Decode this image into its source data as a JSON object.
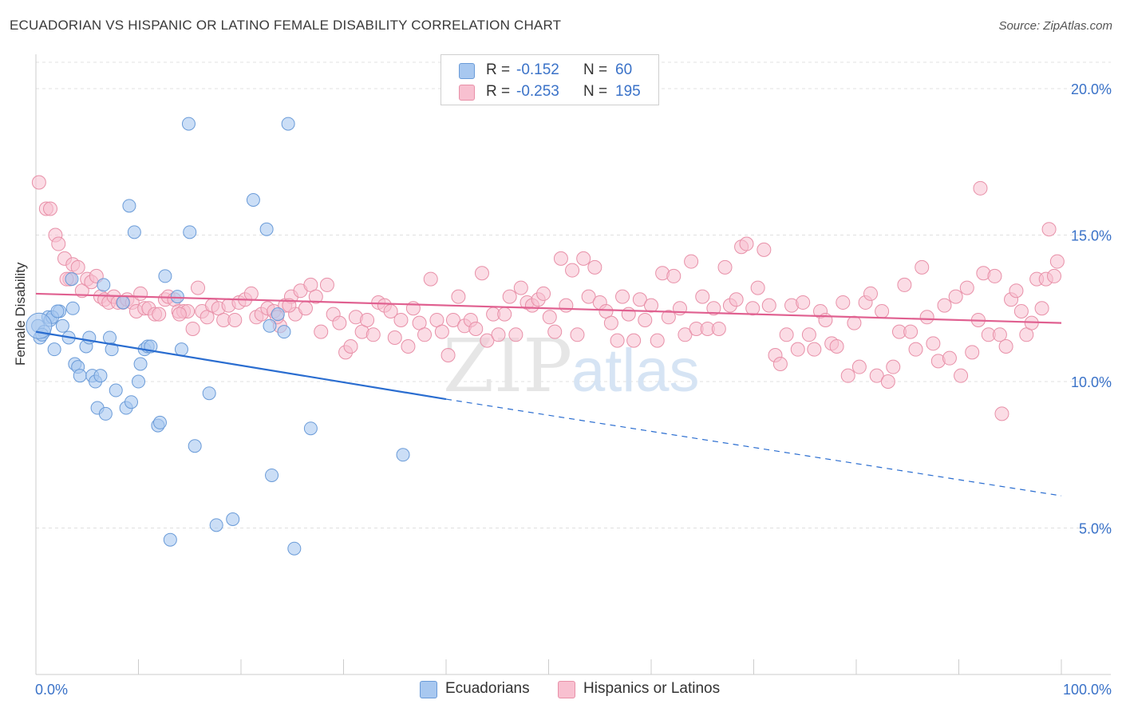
{
  "title": "ECUADORIAN VS HISPANIC OR LATINO FEMALE DISABILITY CORRELATION CHART",
  "source": "Source: ZipAtlas.com",
  "watermark": {
    "zip": "ZIP",
    "atlas": "atlas"
  },
  "legend": {
    "rows": [
      {
        "r_label": "R =",
        "r_value": "-0.152",
        "n_label": "N =",
        "n_value": "60",
        "color": "#a8c8f0",
        "border": "#6a9bd8"
      },
      {
        "r_label": "R =",
        "r_value": "-0.253",
        "n_label": "N =",
        "n_value": "195",
        "color": "#f8c0d0",
        "border": "#e890a8"
      }
    ]
  },
  "bottom_legend": [
    "Ecuadorians",
    "Hispanics or Latinos"
  ],
  "colors": {
    "blue_fill": "#a8c8f0",
    "blue_stroke": "#6a9bd8",
    "blue_line": "#2a6dd0",
    "pink_fill": "#f8c0d0",
    "pink_stroke": "#e890a8",
    "pink_line": "#e06090",
    "tick_label": "#3a72c8",
    "grid": "#e0e0e0"
  },
  "chart_data": {
    "type": "scatter",
    "title": "ECUADORIAN VS HISPANIC OR LATINO FEMALE DISABILITY CORRELATION CHART",
    "xlabel": "",
    "ylabel": "Female Disability",
    "xlim": [
      0,
      100
    ],
    "ylim": [
      0,
      21.5
    ],
    "x_tick_labels": [
      "0.0%",
      "100.0%"
    ],
    "y_ticks": [
      5,
      10,
      15,
      20
    ],
    "y_tick_labels": [
      "5.0%",
      "10.0%",
      "15.0%",
      "20.0%"
    ],
    "grid": true,
    "legend_position": "top-center",
    "series": [
      {
        "name": "Ecuadorians",
        "r": -0.152,
        "n": 60,
        "trend": {
          "x0": 0,
          "y0": 11.7,
          "x1": 40,
          "y1": 9.4,
          "dashed_to_x": 100,
          "dashed_to_y": 6.1
        },
        "points": [
          [
            0.2,
            11.9
          ],
          [
            0.4,
            11.5
          ],
          [
            0.8,
            11.7
          ],
          [
            1.2,
            12.2
          ],
          [
            1.4,
            12.1
          ],
          [
            1.8,
            11.1
          ],
          [
            2.3,
            12.4
          ],
          [
            2.6,
            11.9
          ],
          [
            3.2,
            11.5
          ],
          [
            3.5,
            13.5
          ],
          [
            3.6,
            12.5
          ],
          [
            3.8,
            10.6
          ],
          [
            4.1,
            10.5
          ],
          [
            4.3,
            10.2
          ],
          [
            4.9,
            11.2
          ],
          [
            5.2,
            11.5
          ],
          [
            5.5,
            10.2
          ],
          [
            5.8,
            10.0
          ],
          [
            6.0,
            9.1
          ],
          [
            6.3,
            10.2
          ],
          [
            6.6,
            13.3
          ],
          [
            6.8,
            8.9
          ],
          [
            7.2,
            11.5
          ],
          [
            7.4,
            11.1
          ],
          [
            7.8,
            9.7
          ],
          [
            8.5,
            12.7
          ],
          [
            8.8,
            9.1
          ],
          [
            9.1,
            16.0
          ],
          [
            9.3,
            9.3
          ],
          [
            9.6,
            15.1
          ],
          [
            10.0,
            10.0
          ],
          [
            10.2,
            10.6
          ],
          [
            10.6,
            11.1
          ],
          [
            10.9,
            11.2
          ],
          [
            11.2,
            11.2
          ],
          [
            11.9,
            8.5
          ],
          [
            12.1,
            8.6
          ],
          [
            12.6,
            13.6
          ],
          [
            13.1,
            4.6
          ],
          [
            13.8,
            12.9
          ],
          [
            14.2,
            11.1
          ],
          [
            14.9,
            18.8
          ],
          [
            15.0,
            15.1
          ],
          [
            15.5,
            7.8
          ],
          [
            16.9,
            9.6
          ],
          [
            17.6,
            5.1
          ],
          [
            19.2,
            5.3
          ],
          [
            21.2,
            16.2
          ],
          [
            22.5,
            15.2
          ],
          [
            22.8,
            11.9
          ],
          [
            23.0,
            6.8
          ],
          [
            23.6,
            12.3
          ],
          [
            24.2,
            11.7
          ],
          [
            24.6,
            18.8
          ],
          [
            25.2,
            4.3
          ],
          [
            26.8,
            8.4
          ],
          [
            35.8,
            7.5
          ],
          [
            0.6,
            11.6
          ],
          [
            1.6,
            12.2
          ],
          [
            2.1,
            12.4
          ]
        ]
      },
      {
        "name": "Hispanics or Latinos",
        "r": -0.253,
        "n": 195,
        "trend": {
          "x0": 0,
          "y0": 13.0,
          "x1": 100,
          "y1": 12.0
        },
        "points": [
          [
            0.3,
            16.8
          ],
          [
            1.0,
            15.9
          ],
          [
            1.4,
            15.9
          ],
          [
            1.9,
            15.0
          ],
          [
            2.2,
            14.7
          ],
          [
            2.8,
            14.2
          ],
          [
            3.3,
            13.5
          ],
          [
            3.6,
            14.0
          ],
          [
            4.1,
            13.9
          ],
          [
            4.5,
            13.1
          ],
          [
            5.0,
            13.5
          ],
          [
            5.4,
            13.4
          ],
          [
            5.9,
            13.6
          ],
          [
            6.3,
            12.9
          ],
          [
            6.7,
            12.8
          ],
          [
            7.1,
            12.7
          ],
          [
            7.6,
            12.9
          ],
          [
            8.0,
            12.7
          ],
          [
            8.5,
            12.7
          ],
          [
            8.9,
            12.8
          ],
          [
            9.4,
            12.7
          ],
          [
            9.8,
            12.4
          ],
          [
            10.2,
            13.0
          ],
          [
            10.6,
            12.5
          ],
          [
            11.0,
            12.5
          ],
          [
            11.6,
            12.3
          ],
          [
            12.0,
            12.3
          ],
          [
            12.6,
            12.8
          ],
          [
            12.9,
            12.9
          ],
          [
            13.5,
            12.8
          ],
          [
            13.9,
            12.4
          ],
          [
            14.4,
            12.4
          ],
          [
            14.8,
            12.4
          ],
          [
            15.3,
            11.8
          ],
          [
            15.8,
            13.2
          ],
          [
            16.2,
            12.4
          ],
          [
            16.7,
            12.2
          ],
          [
            17.2,
            12.6
          ],
          [
            17.8,
            12.5
          ],
          [
            18.3,
            12.1
          ],
          [
            18.8,
            12.6
          ],
          [
            19.4,
            12.1
          ],
          [
            19.8,
            12.7
          ],
          [
            20.4,
            12.8
          ],
          [
            21.0,
            13.0
          ],
          [
            21.5,
            12.2
          ],
          [
            22.0,
            12.3
          ],
          [
            22.6,
            12.5
          ],
          [
            23.2,
            12.4
          ],
          [
            23.8,
            11.9
          ],
          [
            24.3,
            12.6
          ],
          [
            24.9,
            12.9
          ],
          [
            25.3,
            12.3
          ],
          [
            25.8,
            13.1
          ],
          [
            26.3,
            12.5
          ],
          [
            26.8,
            13.3
          ],
          [
            27.3,
            12.9
          ],
          [
            27.8,
            11.7
          ],
          [
            28.4,
            13.3
          ],
          [
            29.0,
            12.3
          ],
          [
            29.6,
            12.0
          ],
          [
            30.2,
            11.0
          ],
          [
            30.7,
            11.2
          ],
          [
            31.2,
            12.2
          ],
          [
            31.8,
            11.7
          ],
          [
            32.3,
            12.1
          ],
          [
            32.9,
            11.6
          ],
          [
            33.4,
            12.7
          ],
          [
            34.0,
            12.6
          ],
          [
            34.6,
            12.4
          ],
          [
            35.0,
            11.5
          ],
          [
            35.6,
            12.1
          ],
          [
            36.3,
            11.2
          ],
          [
            36.8,
            12.5
          ],
          [
            37.4,
            12.0
          ],
          [
            37.9,
            11.6
          ],
          [
            38.5,
            13.5
          ],
          [
            39.1,
            12.1
          ],
          [
            39.6,
            11.7
          ],
          [
            40.2,
            10.9
          ],
          [
            40.7,
            12.1
          ],
          [
            41.2,
            12.9
          ],
          [
            41.8,
            11.9
          ],
          [
            42.4,
            12.1
          ],
          [
            42.9,
            11.8
          ],
          [
            43.5,
            13.7
          ],
          [
            44.0,
            11.4
          ],
          [
            44.6,
            12.3
          ],
          [
            45.1,
            11.6
          ],
          [
            45.7,
            12.3
          ],
          [
            46.2,
            12.9
          ],
          [
            46.8,
            11.6
          ],
          [
            47.3,
            13.2
          ],
          [
            47.9,
            12.7
          ],
          [
            48.4,
            12.6
          ],
          [
            49.0,
            12.8
          ],
          [
            49.5,
            13.0
          ],
          [
            50.1,
            12.2
          ],
          [
            50.6,
            11.7
          ],
          [
            51.2,
            14.2
          ],
          [
            51.7,
            12.6
          ],
          [
            52.3,
            13.8
          ],
          [
            52.8,
            11.6
          ],
          [
            53.4,
            14.2
          ],
          [
            53.9,
            12.9
          ],
          [
            54.5,
            13.9
          ],
          [
            55.0,
            12.7
          ],
          [
            55.6,
            12.4
          ],
          [
            56.1,
            12.0
          ],
          [
            56.7,
            11.4
          ],
          [
            57.2,
            12.9
          ],
          [
            57.8,
            12.3
          ],
          [
            58.3,
            11.4
          ],
          [
            58.9,
            12.8
          ],
          [
            59.4,
            12.1
          ],
          [
            60.0,
            12.6
          ],
          [
            60.6,
            11.4
          ],
          [
            61.1,
            13.7
          ],
          [
            61.7,
            12.2
          ],
          [
            62.2,
            13.6
          ],
          [
            62.8,
            12.5
          ],
          [
            63.3,
            11.6
          ],
          [
            63.9,
            14.1
          ],
          [
            64.4,
            11.8
          ],
          [
            65.0,
            12.9
          ],
          [
            65.5,
            11.8
          ],
          [
            66.1,
            12.5
          ],
          [
            66.6,
            11.8
          ],
          [
            67.2,
            13.9
          ],
          [
            67.7,
            12.6
          ],
          [
            68.3,
            12.8
          ],
          [
            68.8,
            14.6
          ],
          [
            69.3,
            14.7
          ],
          [
            69.9,
            12.5
          ],
          [
            70.4,
            13.2
          ],
          [
            71.0,
            14.5
          ],
          [
            71.5,
            12.6
          ],
          [
            72.1,
            10.9
          ],
          [
            72.6,
            10.6
          ],
          [
            73.2,
            11.6
          ],
          [
            73.7,
            12.6
          ],
          [
            74.3,
            11.1
          ],
          [
            74.8,
            12.7
          ],
          [
            75.4,
            11.6
          ],
          [
            75.9,
            11.1
          ],
          [
            76.5,
            12.4
          ],
          [
            77.0,
            12.1
          ],
          [
            77.6,
            11.3
          ],
          [
            78.1,
            11.2
          ],
          [
            78.7,
            12.7
          ],
          [
            79.2,
            10.2
          ],
          [
            79.8,
            12.0
          ],
          [
            80.3,
            10.5
          ],
          [
            80.9,
            12.7
          ],
          [
            81.4,
            13.0
          ],
          [
            82.0,
            10.2
          ],
          [
            82.5,
            12.4
          ],
          [
            83.1,
            10.0
          ],
          [
            83.6,
            10.5
          ],
          [
            84.2,
            11.7
          ],
          [
            84.7,
            13.3
          ],
          [
            85.3,
            11.7
          ],
          [
            85.8,
            11.1
          ],
          [
            86.4,
            13.9
          ],
          [
            86.9,
            12.2
          ],
          [
            87.5,
            11.3
          ],
          [
            88.0,
            10.7
          ],
          [
            88.6,
            12.6
          ],
          [
            89.1,
            10.8
          ],
          [
            89.7,
            12.9
          ],
          [
            90.2,
            10.2
          ],
          [
            90.8,
            13.2
          ],
          [
            91.3,
            11.0
          ],
          [
            91.9,
            12.1
          ],
          [
            92.4,
            13.7
          ],
          [
            92.9,
            11.6
          ],
          [
            93.5,
            13.6
          ],
          [
            94.0,
            11.6
          ],
          [
            94.6,
            11.2
          ],
          [
            95.1,
            12.8
          ],
          [
            95.6,
            13.1
          ],
          [
            96.1,
            12.4
          ],
          [
            96.6,
            11.6
          ],
          [
            97.1,
            12.0
          ],
          [
            97.6,
            13.5
          ],
          [
            98.1,
            12.5
          ],
          [
            98.5,
            13.5
          ],
          [
            98.8,
            15.2
          ],
          [
            99.3,
            13.6
          ],
          [
            99.6,
            14.1
          ],
          [
            94.2,
            8.9
          ],
          [
            92.1,
            16.6
          ],
          [
            3.0,
            13.5
          ],
          [
            14.0,
            12.3
          ],
          [
            23.5,
            12.2
          ],
          [
            24.7,
            12.6
          ]
        ]
      }
    ]
  }
}
